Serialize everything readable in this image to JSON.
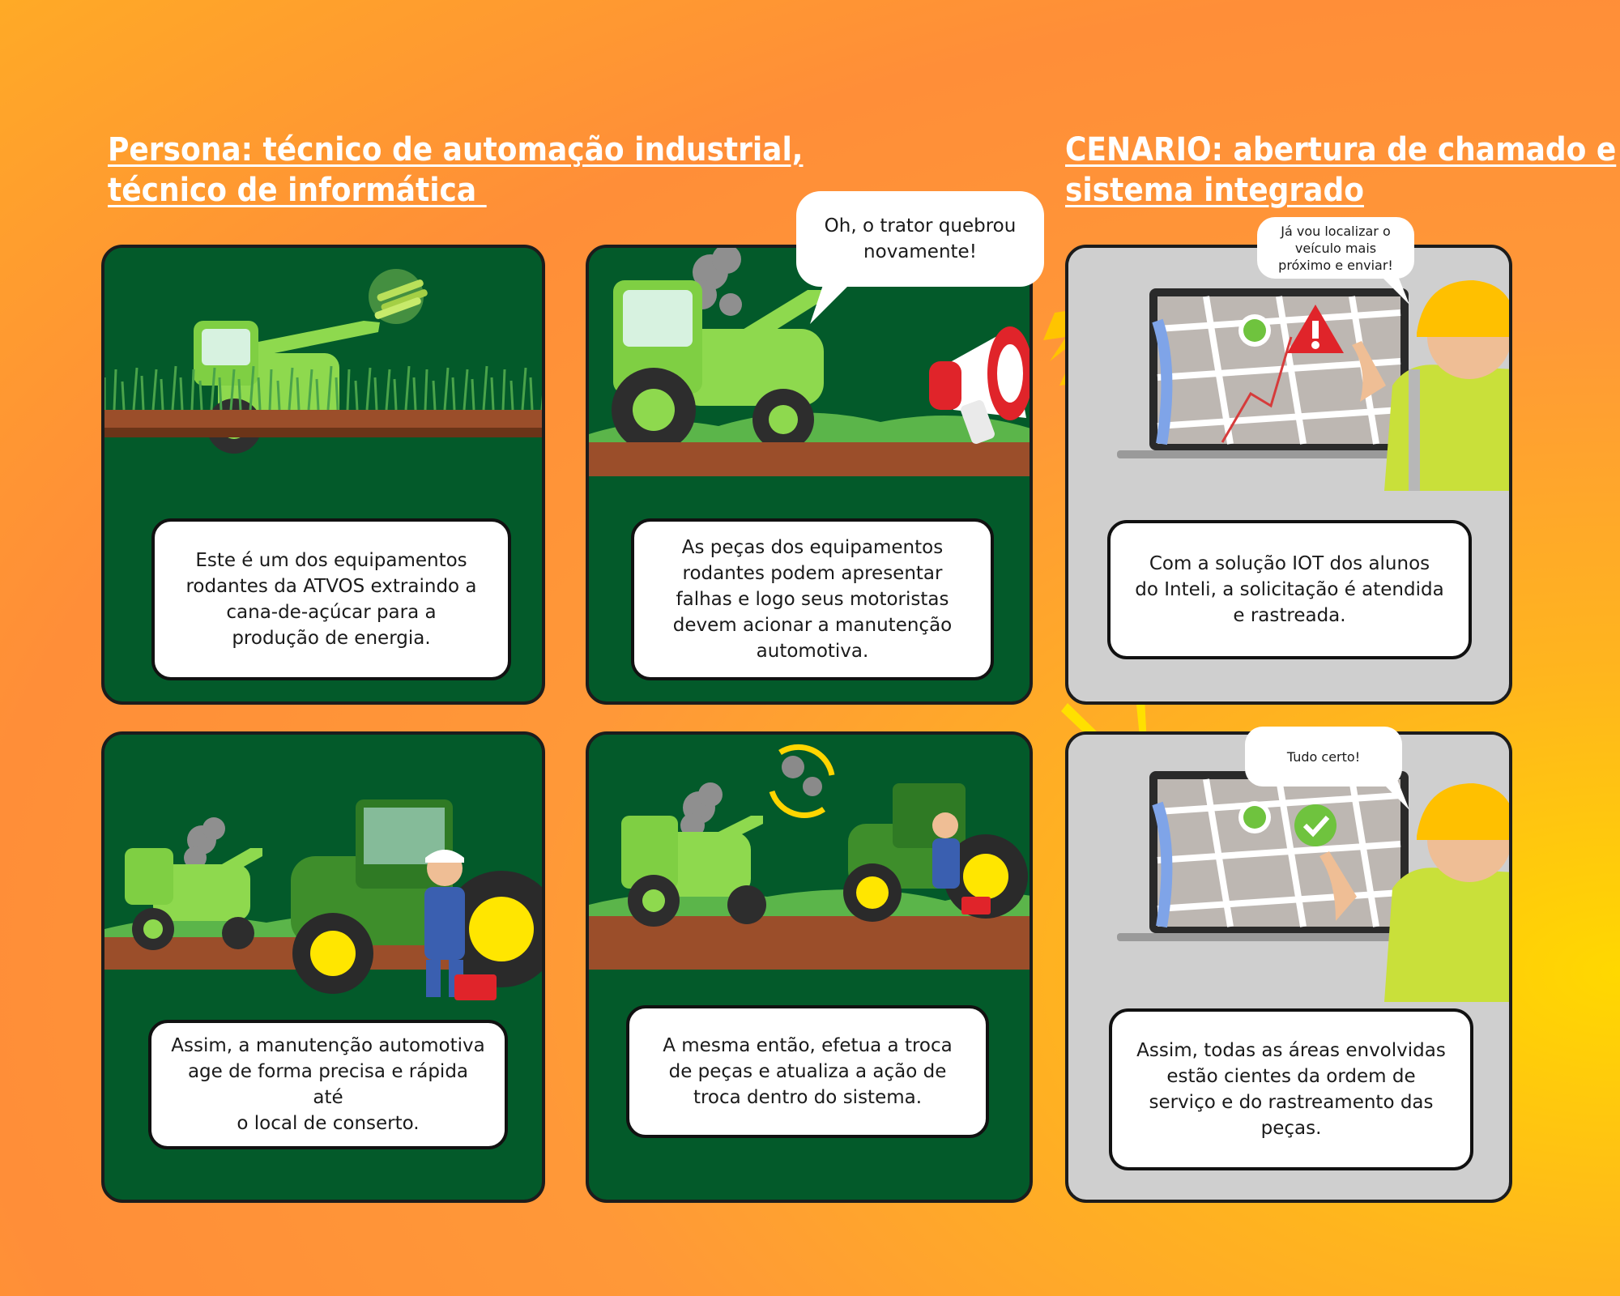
{
  "headings": {
    "persona": "Persona: técnico de automação industrial,\ntécnico de informática ",
    "cenario": "CENARIO: abertura de chamado e\nsistema integrado"
  },
  "panels": [
    {
      "caption": "Este é um dos equipamentos\nrodantes da ATVOS extraindo a\ncana-de-açúcar para a\nprodução de energia."
    },
    {
      "caption": "As peças dos equipamentos\nrodantes podem apresentar\nfalhas e logo seus motoristas\ndevem acionar a manutenção\nautomotiva."
    },
    {
      "caption": "Com a solução IOT dos alunos\ndo Inteli, a solicitação é atendida\ne rastreada."
    },
    {
      "caption": "Assim, a manutenção automotiva\nage de forma precisa e rápida até\no local de conserto."
    },
    {
      "caption": "A mesma então, efetua a troca\nde peças e atualiza a ação de\ntroca dentro do sistema."
    },
    {
      "caption": "Assim, todas as áreas envolvidas\nestão cientes da ordem de\nserviço e do rastreamento das\npeças."
    }
  ],
  "bubbles": {
    "tractor_broke": "Oh, o trator quebrou\nnovamente!",
    "locate_vehicle": "Já vou localizar o\nveículo mais\npróximo e enviar!",
    "all_good": "Tudo certo!"
  },
  "colors": {
    "background": "#ff9838",
    "panel_green": "#035a2a",
    "panel_gray": "#cfcfcf",
    "tractor_green": "#8ed94e",
    "soil": "#9b4e2a",
    "alert_red": "#e0242a",
    "success_green": "#6fc33e"
  },
  "icons": [
    "sugarcane-icon",
    "smoke-icon",
    "megaphone-icon",
    "lightning-icon",
    "map-pin-icon",
    "alert-icon",
    "check-badge-icon",
    "gear-icon",
    "refresh-arrows-icon",
    "hard-hat-icon",
    "toolbox-icon"
  ]
}
